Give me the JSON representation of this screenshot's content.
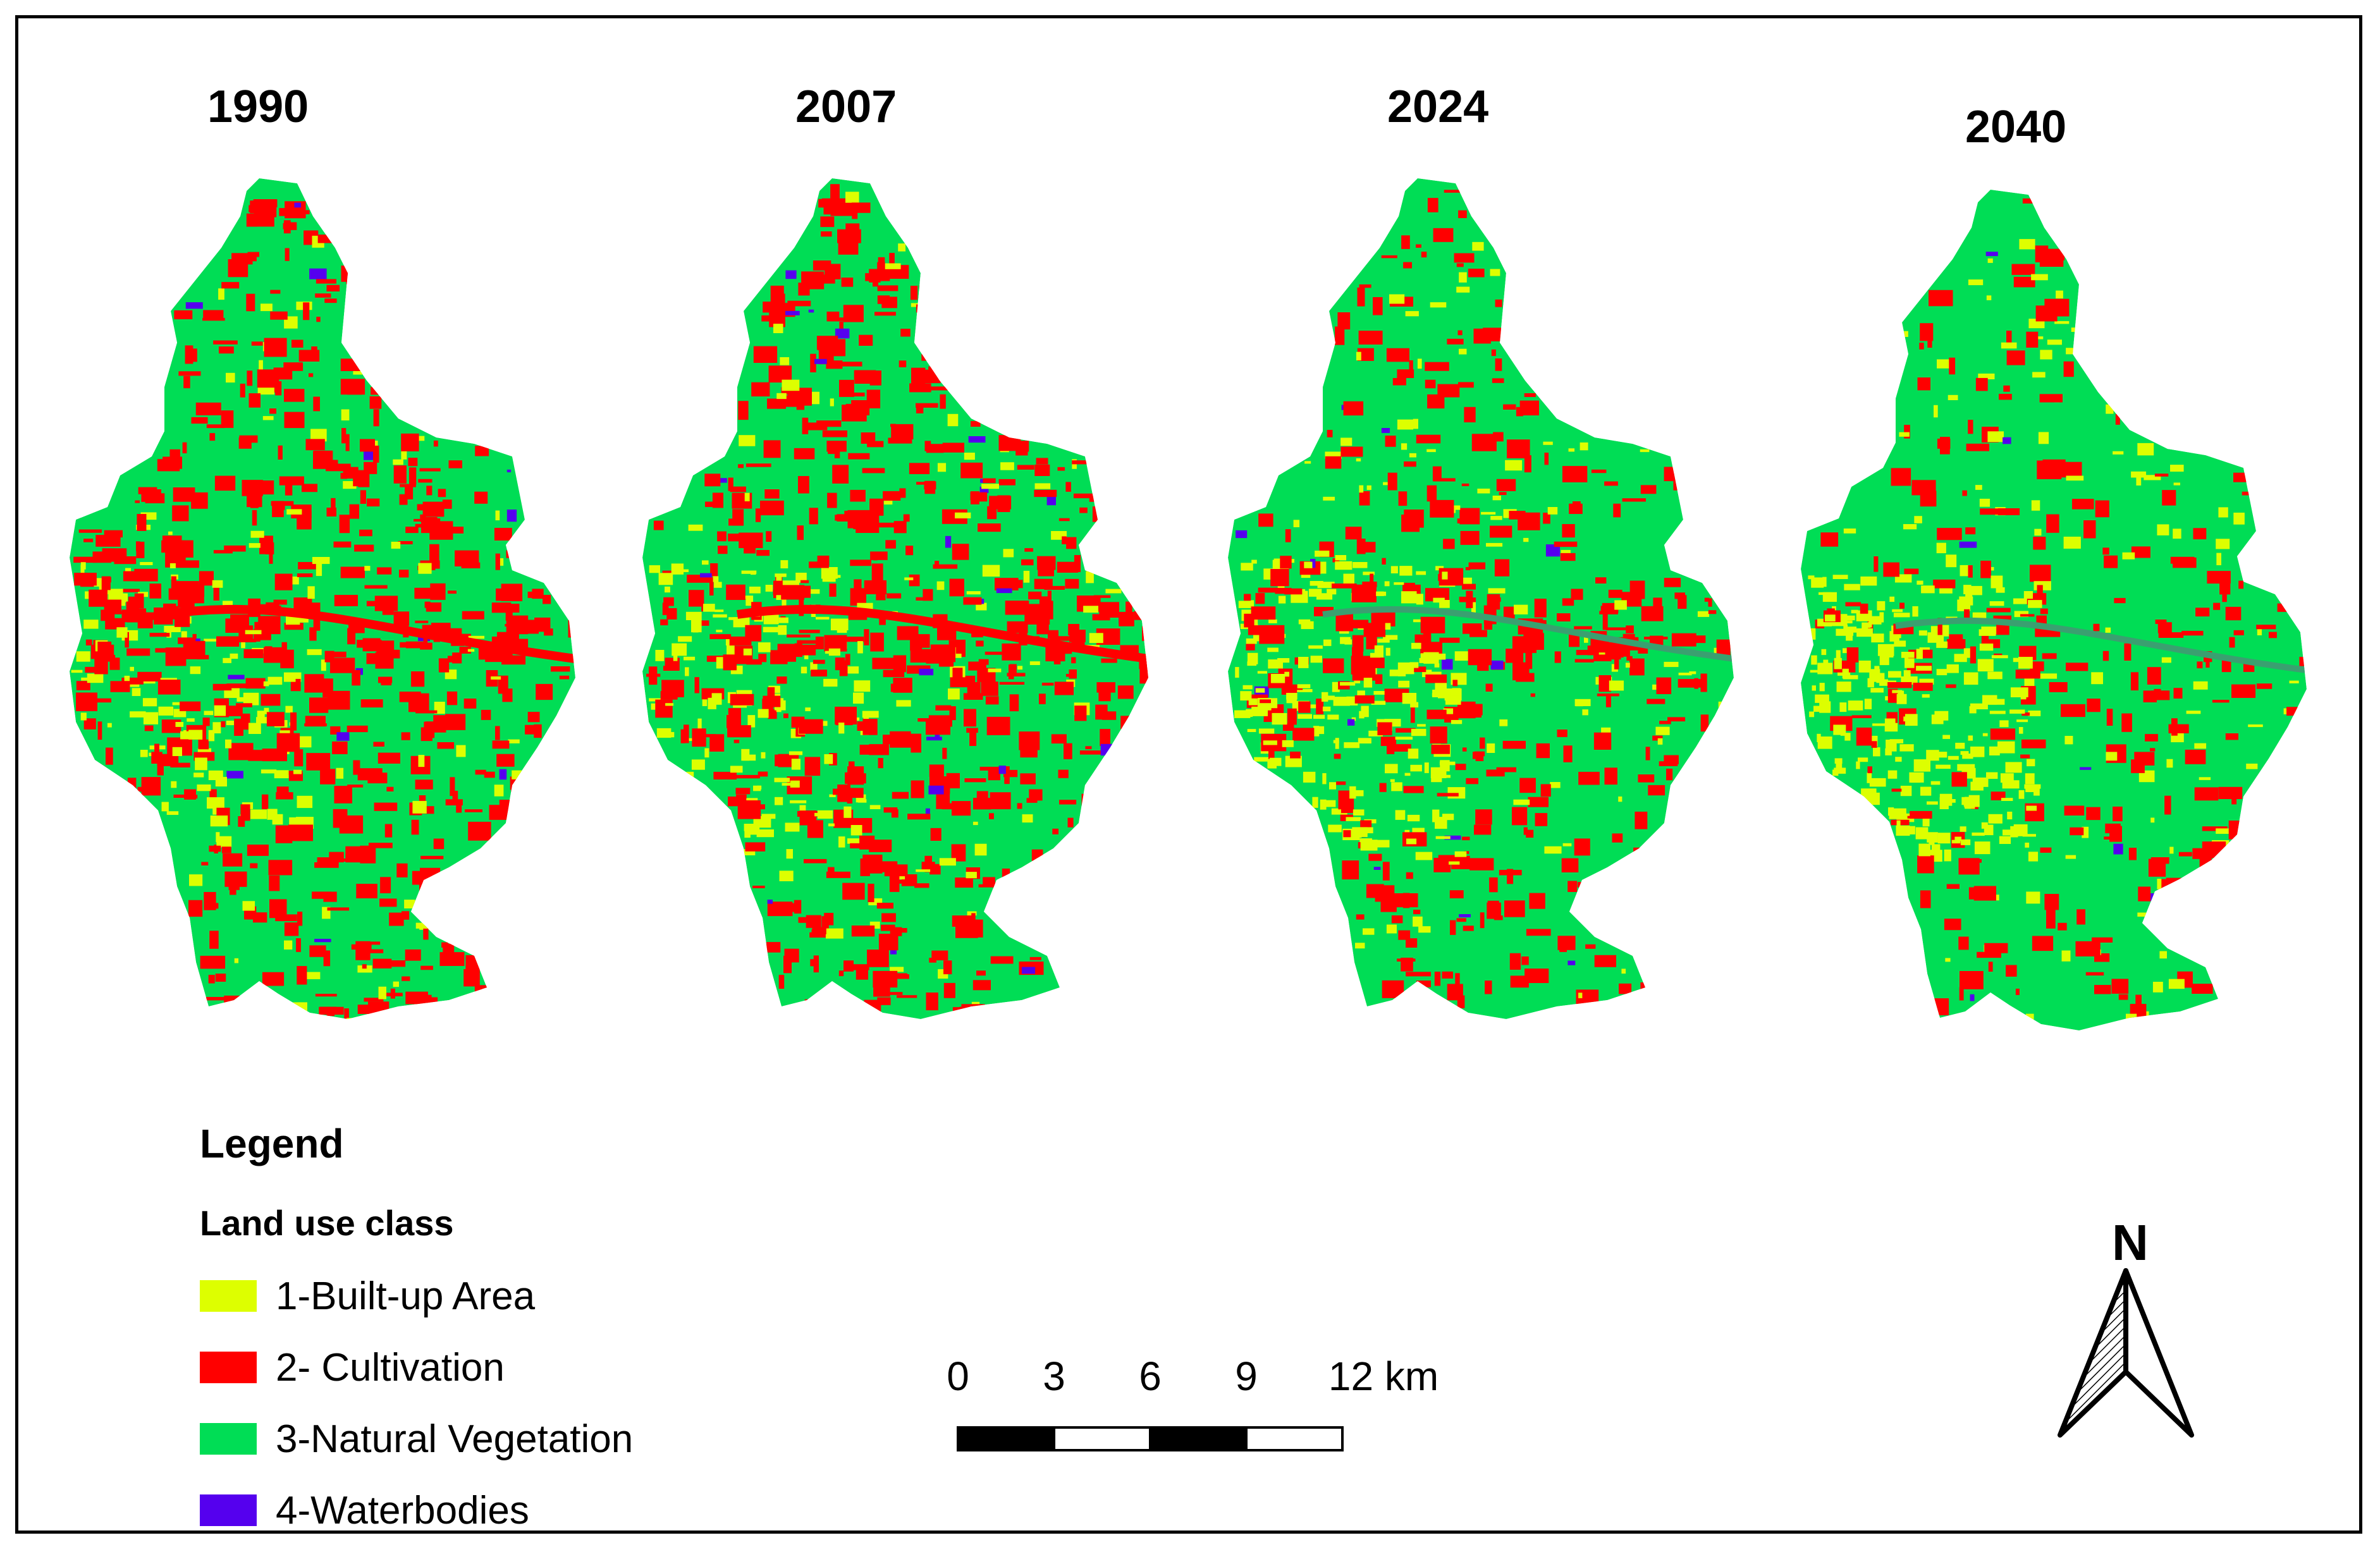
{
  "maps": [
    {
      "year": "1990",
      "scheme": {
        "builtup": 0.1,
        "cultivation": 0.32,
        "water": 0.01
      }
    },
    {
      "year": "2007",
      "scheme": {
        "builtup": 0.13,
        "cultivation": 0.33,
        "water": 0.014
      }
    },
    {
      "year": "2024",
      "scheme": {
        "builtup": 0.19,
        "cultivation": 0.22,
        "water": 0.01
      }
    },
    {
      "year": "2040",
      "scheme": {
        "builtup": 0.2,
        "cultivation": 0.13,
        "water": 0.006
      }
    }
  ],
  "legend": {
    "title": "Legend",
    "subtitle": "Land use class",
    "items": [
      {
        "label": "1-Built-up Area",
        "color": "#ddff00"
      },
      {
        "label": "2- Cultivation",
        "color": "#ff0000"
      },
      {
        "label": "3-Natural Vegetation",
        "color": "#00dd55"
      },
      {
        "label": "4-Waterbodies",
        "color": "#5500ee"
      }
    ]
  },
  "scale_bar": {
    "ticks": [
      "0",
      "3",
      "6",
      "9",
      "12 km"
    ]
  },
  "north_arrow": {
    "label": "N",
    "icon": "north-arrow-icon"
  }
}
